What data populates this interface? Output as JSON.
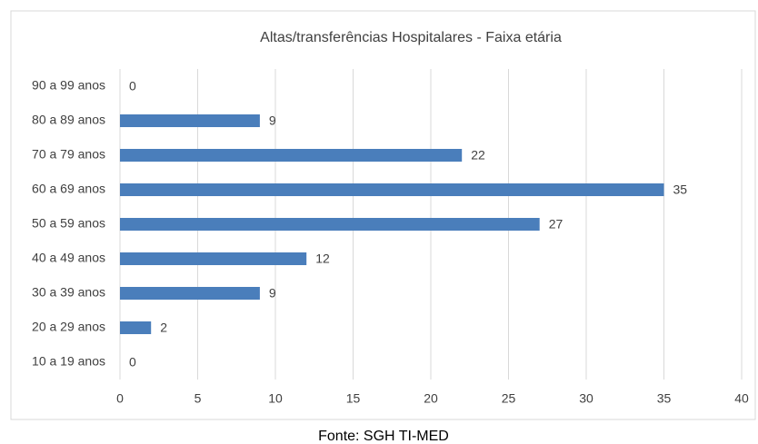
{
  "chart_data": {
    "type": "barh",
    "title": "Altas/transferências Hospitalares - Faixa etária",
    "categories": [
      "90 a 99 anos",
      "80 a 89 anos",
      "70 a 79 anos",
      "60 a 69 anos",
      "50 a 59 anos",
      "40 a 49 anos",
      "30 a 39 anos",
      "20 a 29 anos",
      "10 a 19 anos"
    ],
    "values": [
      0,
      9,
      22,
      35,
      27,
      12,
      9,
      2,
      0
    ],
    "color": "#4a7ebb",
    "xlim": [
      0,
      40
    ],
    "xticks": [
      0,
      5,
      10,
      15,
      20,
      25,
      30,
      35,
      40
    ],
    "grid": true
  },
  "source": "Fonte: SGH TI-MED"
}
